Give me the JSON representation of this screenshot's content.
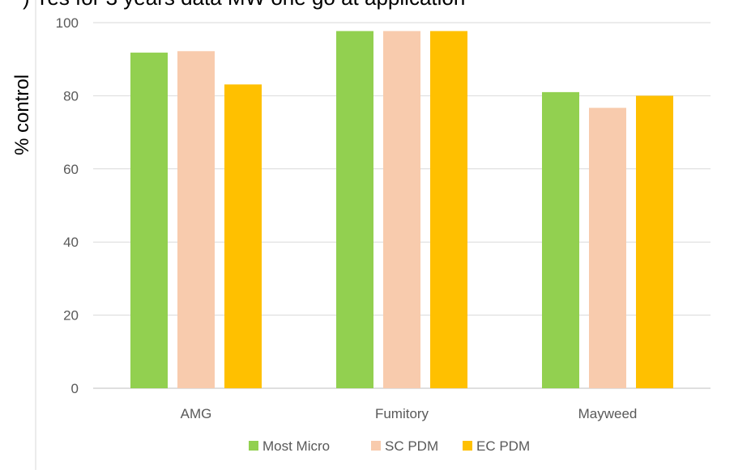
{
  "chart_data": {
    "type": "bar",
    "title": ") Yes for 3 years data MW one go at application",
    "xlabel": "",
    "ylabel": "% control",
    "ylim": [
      0,
      100
    ],
    "yticks": [
      0,
      20,
      40,
      60,
      80,
      100
    ],
    "grid": true,
    "legend_position": "bottom",
    "categories": [
      "AMG",
      "Fumitory",
      "Mayweed"
    ],
    "series": [
      {
        "name": "Most Micro",
        "color": "#92d050",
        "values": [
          91.8,
          97.7,
          81.0
        ]
      },
      {
        "name": "SC PDM",
        "color": "#f8cbad",
        "values": [
          92.2,
          97.7,
          76.7
        ]
      },
      {
        "name": "EC PDM",
        "color": "#ffc000",
        "values": [
          83.1,
          97.7,
          80.0
        ]
      }
    ]
  }
}
